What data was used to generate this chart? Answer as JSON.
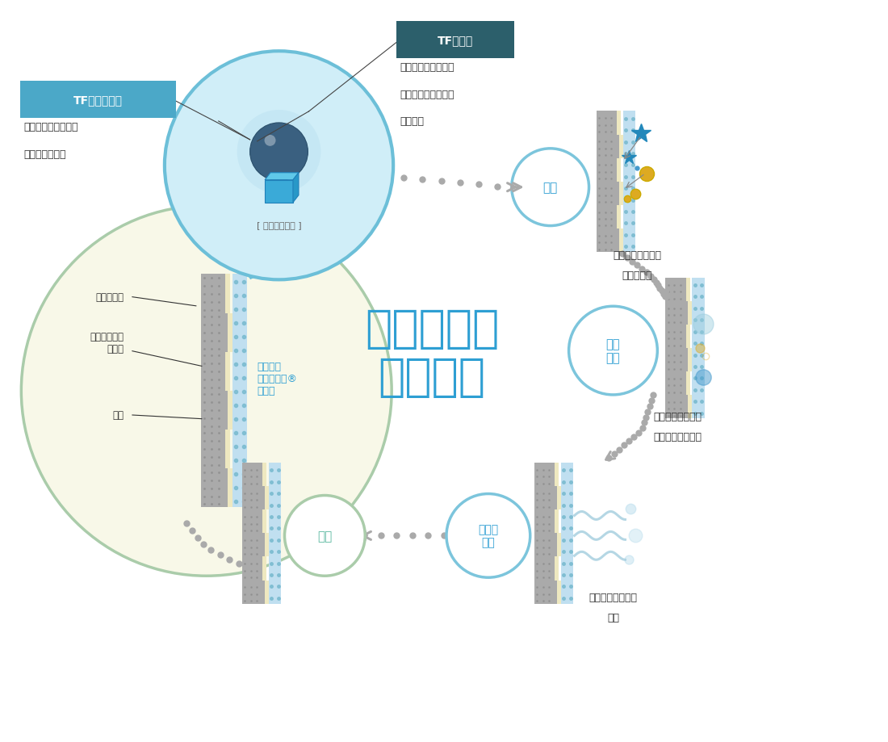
{
  "title_line1": "空気を洗う",
  "title_line2": "はたらき",
  "title_color": "#2E9FD3",
  "bg_color": "#ffffff",
  "label_tf_nitrogen": "TF窒素化合物",
  "label_tf_nitrogen_color": "#ffffff",
  "label_tf_nitrogen_bg": "#4BA8C8",
  "label_tf_metal": "TF金属塩",
  "label_tf_metal_color": "#ffffff",
  "label_tf_metal_bg": "#2C5F6B",
  "label_enlarged": "[ 拡大イメージ ]",
  "label_nitrogen_desc1": "アルデヒド系物質を",
  "label_nitrogen_desc2": "速効吸着・分解",
  "label_metal_desc1": "悪臭原因物質を触媒",
  "label_metal_desc2": "作用で水や二酸化炭",
  "label_metal_desc3": "素に分解",
  "layer_back_label": "裏打ち紙層",
  "layer_vinyl_label": "塩化ビニール\n樹脂層",
  "layer_print_label": "印刷",
  "label_triple_fresh": "トリプル\nフレッシュ®\n消臭剤",
  "label_triple_fresh_color": "#2E9FD3",
  "step1_label": "吸着",
  "step2_label": "触媒\n作用",
  "step3_label": "分解・\n放出",
  "step4_label": "再生",
  "step1_color": "#2E9FD3",
  "step2_color": "#2E9FD3",
  "step3_color": "#2E9FD3",
  "step4_color": "#5BB8A0",
  "step1_desc1": "ニオイの元になる",
  "step1_desc2": "物質を吸着",
  "step2_desc1": "ニオイの元を水と",
  "step2_desc2": "二酸化炭素に分解",
  "step3_desc1": "水と二酸化炭素を",
  "step3_desc2": "放出",
  "large_circle_bg": "#F8F8E8",
  "large_circle_border": "#AACCAA",
  "zoom_circle_bg": "#D0EEF8",
  "zoom_circle_border": "#6CBFD8",
  "step_circle_border_blue": "#7CC5DC",
  "step_circle_border_green": "#AACCAA",
  "dot_color": "#AAAAAA",
  "particle_blue": "#3399CC",
  "particle_yellow": "#DDAA22",
  "wall_gray": "#AAAAAA",
  "wall_cream": "#EEE8C0",
  "wall_blue": "#C0DFF0",
  "wall_blue_dot": "#7ABBD0"
}
